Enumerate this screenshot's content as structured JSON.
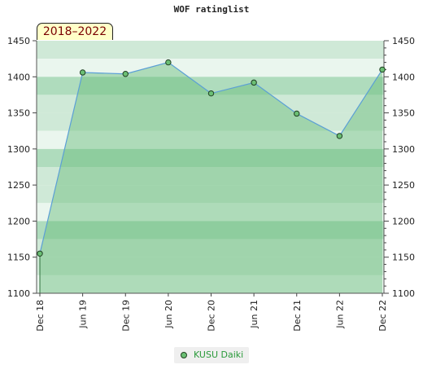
{
  "chart_data": {
    "type": "area",
    "title": "WOF ratinglist",
    "range_label": "2018–2022",
    "x_categories": [
      "Dec 18",
      "Jun 19",
      "Dec 19",
      "Jun 20",
      "Dec 20",
      "Jun 21",
      "Dec 21",
      "Jun 22",
      "Dec 22"
    ],
    "y_ticks": [
      1100,
      1150,
      1200,
      1250,
      1300,
      1350,
      1400,
      1450
    ],
    "ylim": [
      1100,
      1450
    ],
    "series": [
      {
        "name": "KUSU Daiki",
        "values": [
          1155,
          1406,
          1404,
          1420,
          1377,
          1392,
          1349,
          1318,
          1410
        ]
      }
    ],
    "legend_position": "bottom-center",
    "grid": true,
    "colors": {
      "line": "#5b9fd6",
      "fill": "#66bb77",
      "marker": "#6bbf74",
      "band_light": "#eaf6ee",
      "band_mid": "#cfe9d7",
      "band_dark": "#afdcbd"
    }
  }
}
